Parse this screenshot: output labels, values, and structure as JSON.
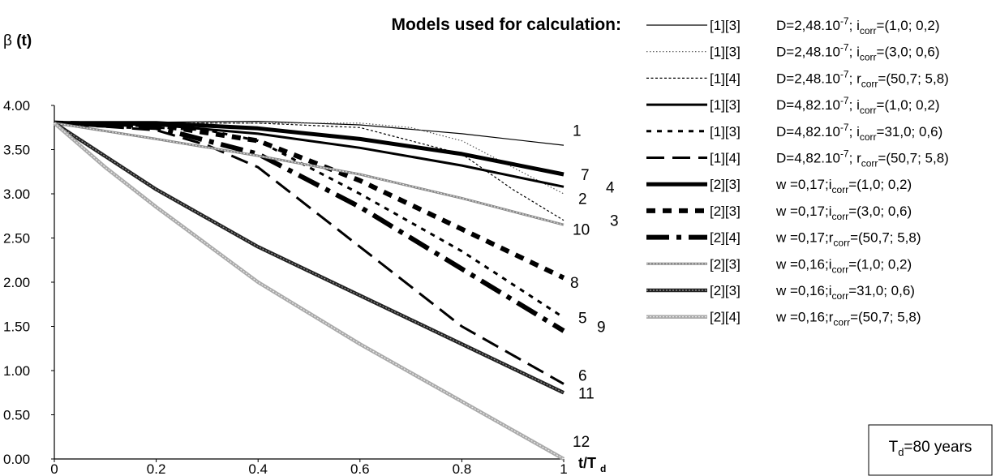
{
  "chart_data": {
    "type": "line",
    "title": "Models used for calculation:",
    "ylabel_main": "β",
    "ylabel_bold": "(t)",
    "xlabel_main": "t/T",
    "xlabel_sub": "d",
    "xlim": [
      0,
      1
    ],
    "ylim": [
      0,
      4
    ],
    "xticks": [
      "0",
      "0.2",
      "0.4",
      "0.6",
      "0.8",
      "1"
    ],
    "yticks": [
      "0.00",
      "0.50",
      "1.00",
      "1.50",
      "2.00",
      "2.50",
      "3.00",
      "3.50",
      "4.00"
    ],
    "grid": false,
    "legend_position": "right",
    "note": {
      "main": "T",
      "sub": "d",
      "rest": "=80 years"
    },
    "series": [
      {
        "name": "1",
        "ref": "[1][3]",
        "style": "thin",
        "x": [
          0,
          0.2,
          0.4,
          0.6,
          0.8,
          1.0
        ],
        "y": [
          3.8,
          3.81,
          3.82,
          3.78,
          3.68,
          3.55
        ]
      },
      {
        "name": "2",
        "ref": "[1][3]",
        "style": "dotted",
        "x": [
          0,
          0.2,
          0.4,
          0.6,
          0.7,
          0.8,
          0.9,
          1.0
        ],
        "y": [
          3.8,
          3.8,
          3.8,
          3.8,
          3.75,
          3.6,
          3.3,
          3.0
        ]
      },
      {
        "name": "3",
        "ref": "[1][4]",
        "style": "finedash",
        "x": [
          0,
          0.2,
          0.4,
          0.6,
          0.7,
          0.8,
          0.9,
          1.0
        ],
        "y": [
          3.8,
          3.8,
          3.8,
          3.75,
          3.6,
          3.45,
          3.05,
          2.7
        ]
      },
      {
        "name": "4",
        "ref": "[1][3]",
        "style": "thick",
        "x": [
          0,
          0.2,
          0.4,
          0.6,
          0.8,
          1.0
        ],
        "y": [
          3.8,
          3.78,
          3.68,
          3.52,
          3.32,
          3.08
        ]
      },
      {
        "name": "5",
        "ref": "[1][3]",
        "style": "shortdash",
        "x": [
          0,
          0.2,
          0.3,
          0.4,
          0.6,
          0.8,
          1.0
        ],
        "y": [
          3.8,
          3.75,
          3.72,
          3.6,
          3.0,
          2.35,
          1.6
        ]
      },
      {
        "name": "6",
        "ref": "[1][4]",
        "style": "longdash",
        "x": [
          0,
          0.2,
          0.3,
          0.4,
          0.6,
          0.8,
          1.0
        ],
        "y": [
          3.8,
          3.72,
          3.55,
          3.3,
          2.4,
          1.5,
          0.85
        ]
      },
      {
        "name": "7",
        "ref": "[2][3]",
        "style": "verythick",
        "x": [
          0,
          0.2,
          0.4,
          0.6,
          0.8,
          1.0
        ],
        "y": [
          3.8,
          3.8,
          3.74,
          3.62,
          3.45,
          3.22
        ]
      },
      {
        "name": "8",
        "ref": "[2][3]",
        "style": "thickdash",
        "x": [
          0,
          0.2,
          0.4,
          0.6,
          0.8,
          1.0
        ],
        "y": [
          3.8,
          3.78,
          3.6,
          3.15,
          2.6,
          2.05
        ]
      },
      {
        "name": "9",
        "ref": "[2][4]",
        "style": "thicklongdash",
        "x": [
          0,
          0.2,
          0.4,
          0.6,
          0.8,
          1.0
        ],
        "y": [
          3.8,
          3.75,
          3.45,
          2.85,
          2.15,
          1.45
        ]
      },
      {
        "name": "10",
        "ref": "[2][3]",
        "style": "greyband",
        "x": [
          0,
          0.2,
          0.4,
          0.6,
          0.8,
          1.0
        ],
        "y": [
          3.8,
          3.62,
          3.43,
          3.22,
          2.95,
          2.65
        ]
      },
      {
        "name": "11",
        "ref": "[2][3]",
        "style": "darkband",
        "x": [
          0,
          0.2,
          0.4,
          0.6,
          0.8,
          1.0
        ],
        "y": [
          3.8,
          3.05,
          2.4,
          1.85,
          1.3,
          0.75
        ]
      },
      {
        "name": "12",
        "ref": "[2][4]",
        "style": "lightband",
        "x": [
          0,
          0.1,
          0.2,
          0.4,
          0.6,
          0.8,
          1.0
        ],
        "y": [
          3.8,
          3.3,
          2.85,
          2.0,
          1.3,
          0.65,
          0.0
        ]
      }
    ],
    "legend_params": [
      {
        "base": "D=2,48.10",
        "sup": "-7",
        "mid": "; ",
        "var": "i",
        "vsub": "corr",
        "val": "=(1,0; 0,2)"
      },
      {
        "base": "D=2,48.10",
        "sup": "-7",
        "mid": "; ",
        "var": "i",
        "vsub": "corr",
        "val": "=(3,0; 0,6)"
      },
      {
        "base": "D=2,48.10",
        "sup": "-7",
        "mid": "; ",
        "var": "r",
        "vsub": "corr",
        "val": "=(50,7; 5,8)"
      },
      {
        "base": "D=4,82.10",
        "sup": "-7",
        "mid": "; ",
        "var": "i",
        "vsub": "corr",
        "val": "=(1,0; 0,2)"
      },
      {
        "base": "D=4,82.10",
        "sup": "-7",
        "mid": "; ",
        "var": "i",
        "vsub": "corr",
        "val": "=31,0; 0,6)"
      },
      {
        "base": "D=4,82.10",
        "sup": "-7",
        "mid": "; ",
        "var": "r",
        "vsub": "corr",
        "val": "=(50,7; 5,8)"
      },
      {
        "base": "w =0,17;",
        "sup": "",
        "mid": "",
        "var": "i",
        "vsub": "corr",
        "val": "=(1,0; 0,2)"
      },
      {
        "base": "w =0,17;",
        "sup": "",
        "mid": "",
        "var": "i",
        "vsub": "corr",
        "val": "=(3,0; 0,6)"
      },
      {
        "base": "w =0,17;",
        "sup": "",
        "mid": "",
        "var": "r",
        "vsub": "corr",
        "val": "=(50,7; 5,8)"
      },
      {
        "base": "w =0,16;",
        "sup": "",
        "mid": "",
        "var": "i",
        "vsub": "corr",
        "val": "=(1,0; 0,2)"
      },
      {
        "base": "w =0,16;",
        "sup": "",
        "mid": "",
        "var": "i",
        "vsub": "corr",
        "val": "=31,0; 0,6)"
      },
      {
        "base": "w =0,16;",
        "sup": "",
        "mid": "",
        "var": "r",
        "vsub": "corr",
        "val": "=(50,7; 5,8)"
      }
    ]
  }
}
